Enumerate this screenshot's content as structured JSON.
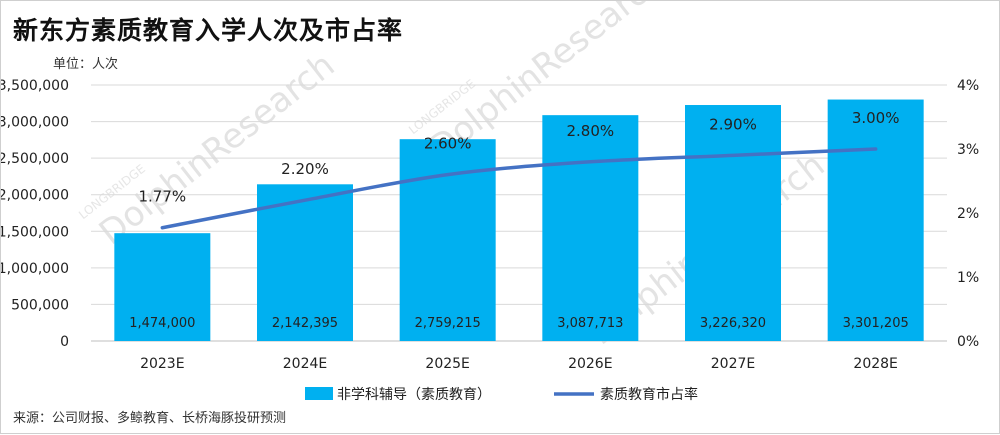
{
  "title": "新东方素质教育入学人次及市占率",
  "unit_label": "单位：人次",
  "source": "来源：公司财报、多鲸教育、长桥海豚投研预测",
  "watermark": {
    "main": "DolphinResearch",
    "small": "LONGBRIDGE"
  },
  "colors": {
    "bar": "#00b0f0",
    "line": "#4472c4",
    "grid": "#d9d9d9"
  },
  "chart_data": {
    "type": "bar",
    "categories": [
      "2023E",
      "2024E",
      "2025E",
      "2026E",
      "2027E",
      "2028E"
    ],
    "series": [
      {
        "name": "非学科辅导（素质教育）",
        "type": "bar",
        "axis": "left",
        "values": [
          1474000,
          2142395,
          2759215,
          3087713,
          3226320,
          3301205
        ],
        "labels": [
          "1,474,000",
          "2,142,395",
          "2,759,215",
          "3,087,713",
          "3,226,320",
          "3,301,205"
        ]
      },
      {
        "name": "素质教育市占率",
        "type": "line",
        "axis": "right",
        "values": [
          1.77,
          2.2,
          2.6,
          2.8,
          2.9,
          3.0
        ],
        "labels": [
          "1.77%",
          "2.20%",
          "2.60%",
          "2.80%",
          "2.90%",
          "3.00%"
        ]
      }
    ],
    "y_left": {
      "range": [
        0,
        3500000
      ],
      "ticks": [
        "0",
        "500,000",
        "1,000,000",
        "1,500,000",
        "2,000,000",
        "2,500,000",
        "3,000,000",
        "3,500,000"
      ]
    },
    "y_right": {
      "range": [
        0,
        4
      ],
      "ticks": [
        "0%",
        "1%",
        "2%",
        "3%",
        "4%"
      ]
    },
    "grid": true,
    "legend": "bottom"
  }
}
